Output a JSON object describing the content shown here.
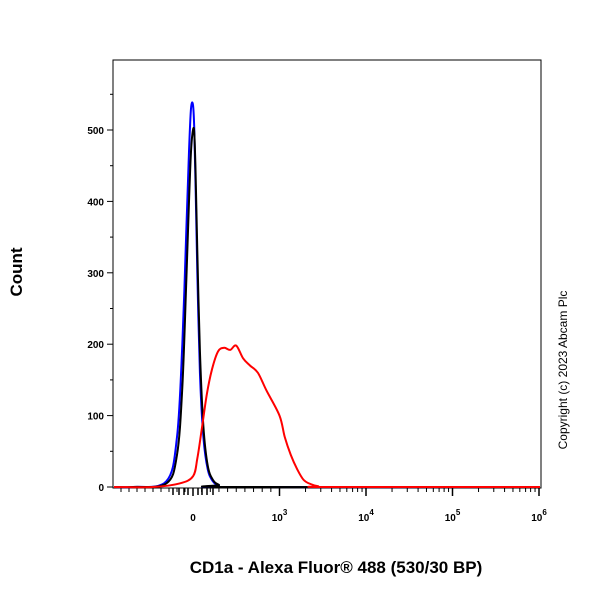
{
  "chart_data": {
    "type": "line",
    "title": "",
    "xlabel": "CD1a - Alexa Fluor® 488 (530/30 BP)",
    "ylabel": "Count",
    "x_scale": "biexponential",
    "xlim": [
      -300,
      1000000
    ],
    "ylim": [
      0,
      560
    ],
    "y_ticks": [
      0,
      100,
      200,
      300,
      400,
      500
    ],
    "x_ticks": [
      {
        "value": 0,
        "label": "0",
        "sup": ""
      },
      {
        "value": 1000,
        "label": "10",
        "sup": "3"
      },
      {
        "value": 10000,
        "label": "10",
        "sup": "4"
      },
      {
        "value": 100000,
        "label": "10",
        "sup": "5"
      },
      {
        "value": 1000000,
        "label": "10",
        "sup": "6"
      }
    ],
    "grid": false,
    "legend": "none",
    "series": [
      {
        "color": "#0000ff",
        "x": [
          -450,
          -200,
          -120,
          -80,
          -50,
          -30,
          -15,
          0,
          15,
          30,
          50,
          80,
          120,
          170,
          230,
          300,
          400
        ],
        "values": [
          0,
          8,
          70,
          200,
          360,
          470,
          530,
          535,
          500,
          420,
          300,
          160,
          70,
          25,
          8,
          2,
          0
        ]
      },
      {
        "color": "#000000",
        "x": [
          -450,
          -200,
          -120,
          -80,
          -50,
          -30,
          -15,
          0,
          15,
          30,
          50,
          80,
          120,
          170,
          230,
          300,
          400
        ],
        "values": [
          0,
          5,
          45,
          140,
          290,
          400,
          470,
          500,
          495,
          440,
          330,
          190,
          85,
          30,
          10,
          3,
          0
        ]
      },
      {
        "color": "#ff0000",
        "x": [
          -300,
          -100,
          0,
          50,
          100,
          160,
          220,
          290,
          360,
          430,
          500,
          580,
          660,
          750,
          850,
          1000,
          1150,
          1350,
          1600,
          1900,
          2300,
          2800,
          3500
        ],
        "values": [
          0,
          5,
          15,
          40,
          80,
          130,
          165,
          190,
          195,
          192,
          198,
          180,
          170,
          160,
          135,
          100,
          70,
          45,
          25,
          10,
          4,
          1,
          0
        ]
      }
    ],
    "annotation": "Copyright (c) 2023 Abcam Plc"
  }
}
